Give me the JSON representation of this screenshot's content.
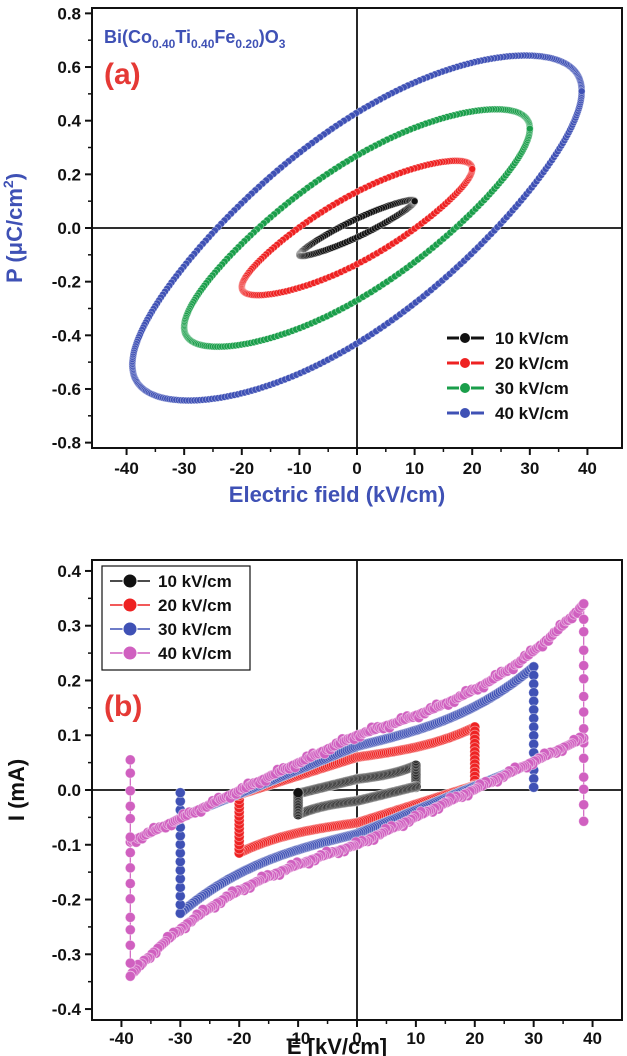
{
  "chart_data": [
    {
      "type": "scatter",
      "panel_label": "(a)",
      "panel_label_color": "#e53935",
      "formula": {
        "parts": [
          {
            "t": "Bi(Co",
            "sub": false
          },
          {
            "t": "0.40",
            "sub": true
          },
          {
            "t": "Ti",
            "sub": false
          },
          {
            "t": "0.40",
            "sub": true
          },
          {
            "t": "Fe",
            "sub": false
          },
          {
            "t": "0.20",
            "sub": true
          },
          {
            "t": ")O",
            "sub": false
          },
          {
            "t": "3",
            "sub": true
          }
        ],
        "color": "#3f51b5"
      },
      "xlabel": "Electric field (kV/cm)",
      "ylabel": {
        "pre": "P (",
        "mu": "μ",
        "mid": "C/cm",
        "sup": "2",
        "post": ")"
      },
      "xlim": [
        -46,
        46
      ],
      "ylim": [
        -0.82,
        0.82
      ],
      "xticks": [
        -40,
        -30,
        -20,
        -10,
        0,
        10,
        20,
        30,
        40
      ],
      "xtick_labels": [
        "-40",
        "-30",
        "-20",
        "-10",
        "0",
        "10",
        "20",
        "30",
        "40"
      ],
      "yticks": [
        -0.8,
        -0.6,
        -0.4,
        -0.2,
        0.0,
        0.2,
        0.4,
        0.6,
        0.8
      ],
      "ytick_labels": [
        "-0.8",
        "-0.6",
        "-0.4",
        "-0.2",
        "0.0",
        "0.2",
        "0.4",
        "0.6",
        "0.8"
      ],
      "legend_position": "bottom-right",
      "series": [
        {
          "name": "10 kV/cm",
          "color": "#111111",
          "emax": 10,
          "pmax": 0.1,
          "pr": 0.035,
          "ec": 6
        },
        {
          "name": "20 kV/cm",
          "color": "#ee2222",
          "emax": 20,
          "pmax": 0.22,
          "pr": 0.135,
          "ec": 12
        },
        {
          "name": "30 kV/cm",
          "color": "#1a9e4a",
          "emax": 30,
          "pmax": 0.37,
          "pr": 0.27,
          "ec": 18
        },
        {
          "name": "40 kV/cm",
          "color": "#3f51b5",
          "emax": 39,
          "pmax": 0.51,
          "pr": 0.43,
          "ec": 23
        }
      ]
    },
    {
      "type": "scatter",
      "panel_label": "(b)",
      "panel_label_color": "#e53935",
      "xlabel": "E [kV/cm]",
      "ylabel": "I (mA)",
      "xlim": [
        -45,
        45
      ],
      "ylim": [
        -0.42,
        0.42
      ],
      "xticks": [
        -40,
        -30,
        -20,
        -10,
        0,
        10,
        20,
        30,
        40
      ],
      "xtick_labels": [
        "-40",
        "-30",
        "-20",
        "-10",
        "0",
        "10",
        "20",
        "30",
        "40"
      ],
      "yticks": [
        -0.4,
        -0.3,
        -0.2,
        -0.1,
        0.0,
        0.1,
        0.2,
        0.3,
        0.4
      ],
      "ytick_labels": [
        "-0.4",
        "-0.3",
        "-0.2",
        "-0.1",
        "0.0",
        "0.1",
        "0.2",
        "0.3",
        "0.4"
      ],
      "legend_position": "top-left",
      "series": [
        {
          "name": "10 kV/cm",
          "color": "#111111",
          "emax": 10,
          "imax": 0.045,
          "i0": 0.02,
          "imin_end": 0.005
        },
        {
          "name": "20 kV/cm",
          "color": "#ee2222",
          "emax": 20,
          "imax": 0.115,
          "i0": 0.06,
          "imin_end": 0.01
        },
        {
          "name": "30 kV/cm",
          "color": "#3f51b5",
          "emax": 30,
          "imax": 0.225,
          "i0": 0.08,
          "imin_end": 0.005
        },
        {
          "name": "40 kV/cm",
          "color": "#d060c0",
          "emax": 38.5,
          "imax": 0.34,
          "i0": 0.1,
          "imin_end": -0.055
        }
      ]
    }
  ]
}
